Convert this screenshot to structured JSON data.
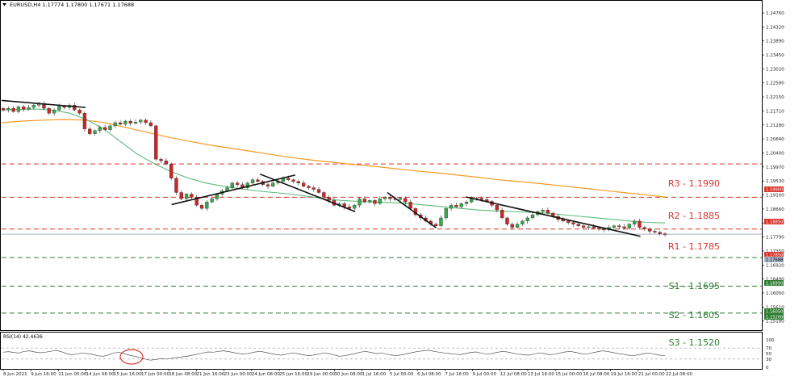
{
  "header": {
    "symbol_line": "EURUSD,H4  1.17774 1.17800 1.17671 1.17688"
  },
  "rsi": {
    "label": "RSI(14) 42.4636",
    "ticks": [
      "100",
      "70",
      "50",
      "30",
      "0"
    ],
    "levels": [
      100,
      70,
      50,
      30,
      0
    ],
    "values": [
      55,
      57,
      54,
      52,
      58,
      60,
      56,
      53,
      55,
      58,
      62,
      57,
      50,
      46,
      48,
      52,
      50,
      47,
      42,
      40,
      45,
      52,
      55,
      50,
      44,
      40,
      36,
      30,
      26,
      28,
      32,
      30,
      33,
      35,
      38,
      40,
      44,
      48,
      52,
      56,
      55,
      58,
      60,
      57,
      53,
      50,
      48,
      52,
      56,
      58,
      54,
      50,
      46,
      44,
      48,
      52,
      50,
      46,
      42,
      44,
      48,
      52,
      50,
      45,
      40,
      42,
      46,
      50,
      55,
      58,
      54,
      50,
      52,
      48,
      44,
      42,
      46,
      50,
      54,
      58,
      60,
      62,
      58,
      55,
      52,
      50,
      48,
      46,
      50,
      54,
      56,
      52,
      48,
      50,
      54,
      58,
      56,
      52,
      48,
      46,
      44,
      48,
      52,
      50,
      46,
      48,
      52,
      56,
      58,
      54,
      50,
      48,
      52,
      56,
      60,
      58,
      54,
      50,
      48,
      44,
      42,
      46,
      50,
      52,
      48,
      44,
      42
    ]
  },
  "price_axis": {
    "ticks": [
      "1.24760",
      "1.24320",
      "1.23890",
      "1.23450",
      "1.23020",
      "1.22580",
      "1.22150",
      "1.21710",
      "1.21280",
      "1.20840",
      "1.20400",
      "1.19970",
      "1.19530",
      "1.19100",
      "1.18660",
      "1.18230",
      "1.17790",
      "1.17350",
      "1.16920",
      "1.16490",
      "1.16050",
      "1.15610",
      "1.15180",
      "1.14740"
    ],
    "current_price_label": "1.17688",
    "r3_tag": "1.19900",
    "r2_tag": "1.18850",
    "r1_tag": "1.17850",
    "s1_tag": "1.16950",
    "s2_tag": "1.16050",
    "s3_tag": "1.15200"
  },
  "x_axis": {
    "ticks": [
      "8 Jun 2021",
      "9 Jun 16:00",
      "11 Jun 00:00",
      "14 Jun 08:00",
      "15 Jun 16:00",
      "17 Jun 00:00",
      "18 Jun 08:00",
      "21 Jun 16:00",
      "23 Jun 00:00",
      "24 Jun 08:00",
      "25 Jun 16:00",
      "29 Jun 00:00",
      "30 Jun 08:00",
      "1 Jul 16:00",
      "5 Jul 00:00",
      "6 Jul 08:00",
      "7 Jul 16:00",
      "9 Jul 00:00",
      "12 Jul 08:00",
      "13 Jul 16:00",
      "15 Jul 00:00",
      "16 Jul 08:00",
      "19 Jul 16:00",
      "21 Jul 00:00",
      "22 Jul 08:00"
    ]
  },
  "levels": {
    "r3": "R3 - 1.1990",
    "r2": "R2 - 1.1885",
    "r1": "R1 - 1.1785",
    "s1": "S1 - 1.1695",
    "s2": "S2 - 1.1605",
    "s3": "S3 - 1.1520"
  },
  "colors": {
    "resistance": "#d9342b",
    "support": "#2e7d32",
    "ma_fast": "#5cba7d",
    "ma_slow": "#f59a23",
    "bull": "#3aa54a",
    "bear": "#c62828",
    "current_price_line": "#a9b4c6"
  },
  "chart_data": {
    "type": "candlestick",
    "symbol": "EURUSD",
    "timeframe": "H4",
    "ohlc_last": {
      "open": 1.17774,
      "high": 1.178,
      "low": 1.17671,
      "close": 1.17688
    },
    "ylim": [
      1.1474,
      1.2476
    ],
    "levels": [
      {
        "label": "R3",
        "value": 1.199
      },
      {
        "label": "R2",
        "value": 1.1885
      },
      {
        "label": "R1",
        "value": 1.1785
      },
      {
        "label": "S1",
        "value": 1.1695
      },
      {
        "label": "S2",
        "value": 1.1605
      },
      {
        "label": "S3",
        "value": 1.152
      }
    ],
    "close_path": [
      1.216,
      1.2165,
      1.2155,
      1.217,
      1.2162,
      1.2168,
      1.2175,
      1.218,
      1.2165,
      1.215,
      1.216,
      1.2172,
      1.2168,
      1.2175,
      1.216,
      1.215,
      1.21,
      1.2085,
      1.2095,
      1.2105,
      1.2098,
      1.211,
      1.212,
      1.2115,
      1.2125,
      1.2118,
      1.2122,
      1.2128,
      1.212,
      1.211,
      1.2005,
      1.2,
      1.199,
      1.1945,
      1.19,
      1.188,
      1.1895,
      1.1885,
      1.186,
      1.185,
      1.187,
      1.188,
      1.1895,
      1.1905,
      1.1915,
      1.193,
      1.1925,
      1.1915,
      1.193,
      1.194,
      1.1935,
      1.1925,
      1.192,
      1.193,
      1.1935,
      1.1945,
      1.194,
      1.1935,
      1.193,
      1.192,
      1.1915,
      1.191,
      1.19,
      1.1885,
      1.1875,
      1.186,
      1.1865,
      1.1855,
      1.185,
      1.186,
      1.188,
      1.187,
      1.1875,
      1.1865,
      1.188,
      1.1885,
      1.188,
      1.1878,
      1.1882,
      1.187,
      1.185,
      1.183,
      1.182,
      1.181,
      1.18,
      1.1795,
      1.182,
      1.185,
      1.186,
      1.1855,
      1.1865,
      1.187,
      1.188,
      1.1882,
      1.1878,
      1.1872,
      1.186,
      1.1845,
      1.182,
      1.18,
      1.179,
      1.18,
      1.181,
      1.182,
      1.183,
      1.184,
      1.1845,
      1.1835,
      1.1825,
      1.1815,
      1.181,
      1.1805,
      1.18,
      1.1795,
      1.179,
      1.1792,
      1.1788,
      1.1785,
      1.1782,
      1.179,
      1.1795,
      1.1792,
      1.1788,
      1.18,
      1.181,
      1.179,
      1.1785,
      1.1778,
      1.1775,
      1.177,
      1.1769
    ],
    "ma_fast_path": [
      1.216,
      1.2162,
      1.2163,
      1.216,
      1.215,
      1.213,
      1.21,
      1.206,
      1.202,
      1.199,
      1.1965,
      1.1945,
      1.193,
      1.192,
      1.1912,
      1.1905,
      1.19,
      1.1895,
      1.1888,
      1.188,
      1.1875,
      1.1872,
      1.187,
      1.1868,
      1.1865,
      1.186,
      1.1855,
      1.185,
      1.1845,
      1.1842,
      1.184,
      1.1838,
      1.1835,
      1.183,
      1.1825,
      1.182,
      1.1815,
      1.181,
      1.1806,
      1.1804
    ],
    "ma_slow_path": [
      1.212,
      1.2125,
      1.2128,
      1.213,
      1.2128,
      1.212,
      1.2105,
      1.209,
      1.2075,
      1.2062,
      1.205,
      1.204,
      1.203,
      1.202,
      1.201,
      1.2002,
      1.1995,
      1.1988,
      1.1982,
      1.1975,
      1.1968,
      1.1962,
      1.1955,
      1.1948,
      1.194,
      1.1934,
      1.1928,
      1.1921,
      1.1914,
      1.1907,
      1.19,
      1.1893,
      1.1886
    ],
    "trendlines": [
      {
        "from": [
          0,
          1.219
        ],
        "to": [
          0.112,
          1.2168
        ]
      },
      {
        "from": [
          0.227,
          1.1862
        ],
        "to": [
          0.392,
          1.1955
        ]
      },
      {
        "from": [
          0.345,
          1.1958
        ],
        "to": [
          0.472,
          1.184
        ]
      },
      {
        "from": [
          0.515,
          1.19
        ],
        "to": [
          0.58,
          1.1789
        ]
      },
      {
        "from": [
          0.62,
          1.1886
        ],
        "to": [
          0.853,
          1.1762
        ]
      }
    ],
    "annotation": "circle-on-rsi-near-17-Jun"
  }
}
